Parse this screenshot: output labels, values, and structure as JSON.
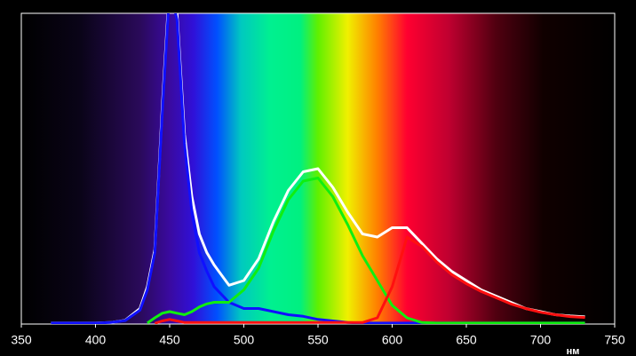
{
  "chart_data": {
    "type": "line",
    "xlabel": "нм",
    "x": [
      370,
      380,
      390,
      400,
      410,
      420,
      430,
      435,
      440,
      445,
      450,
      455,
      460,
      465,
      470,
      475,
      480,
      490,
      500,
      510,
      520,
      530,
      540,
      550,
      560,
      570,
      580,
      590,
      600,
      610,
      620,
      630,
      640,
      650,
      660,
      670,
      680,
      690,
      700,
      710,
      720,
      730
    ],
    "series": [
      {
        "name": "total",
        "color": "#ffffff",
        "values": [
          0.3,
          0.3,
          0.3,
          0.3,
          0.5,
          1.2,
          5,
          12,
          24,
          70,
          110,
          100,
          61,
          41,
          29,
          23,
          19,
          12.5,
          14,
          21,
          33,
          43,
          49,
          50,
          44,
          36,
          29,
          28,
          31,
          31,
          26,
          21,
          17,
          14,
          11,
          9,
          7,
          5,
          4,
          3,
          2.6,
          2.3
        ]
      },
      {
        "name": "blue",
        "color": "#1010ff",
        "values": [
          0.3,
          0.3,
          0.3,
          0.3,
          0.5,
          1.1,
          4.5,
          11,
          23,
          68,
          108,
          98,
          58,
          36,
          23,
          17,
          12,
          7,
          5,
          5,
          4,
          3,
          2.5,
          1.5,
          1,
          0.5,
          0.3,
          0.3,
          0.3,
          0.3,
          0.3,
          0.3,
          0.3,
          0.3,
          0.3,
          0.3,
          0.3,
          0.3,
          0.3,
          0.3,
          0.3,
          0.3
        ]
      },
      {
        "name": "green",
        "color": "#10ee10",
        "values": [
          null,
          null,
          null,
          null,
          null,
          null,
          null,
          0.3,
          2,
          3.5,
          4,
          3.5,
          3,
          4,
          5.5,
          6.5,
          7,
          7,
          11,
          18,
          30,
          40,
          46,
          47,
          41,
          32,
          22,
          14,
          6,
          2,
          0.5,
          0.3,
          0.3,
          0.3,
          0.3,
          0.3,
          0.3,
          0.3,
          0.3,
          0.3,
          0.3,
          0.3
        ]
      },
      {
        "name": "red",
        "color": "#ff1010",
        "values": [
          null,
          null,
          null,
          null,
          null,
          null,
          null,
          null,
          0.2,
          1,
          1.5,
          1,
          0.5,
          0.5,
          0.5,
          0.5,
          0.5,
          0.5,
          0.5,
          0.5,
          0.5,
          0.5,
          0.5,
          0.5,
          0.5,
          0.5,
          0.5,
          2,
          12,
          28,
          25,
          20,
          16,
          13,
          10.5,
          8.5,
          6.5,
          5,
          3.8,
          3,
          2.4,
          2.1
        ]
      }
    ],
    "xlim": [
      350,
      750
    ],
    "xticks": [
      350,
      400,
      450,
      500,
      550,
      600,
      650,
      700,
      750
    ],
    "ylim": [
      0,
      100
    ]
  }
}
